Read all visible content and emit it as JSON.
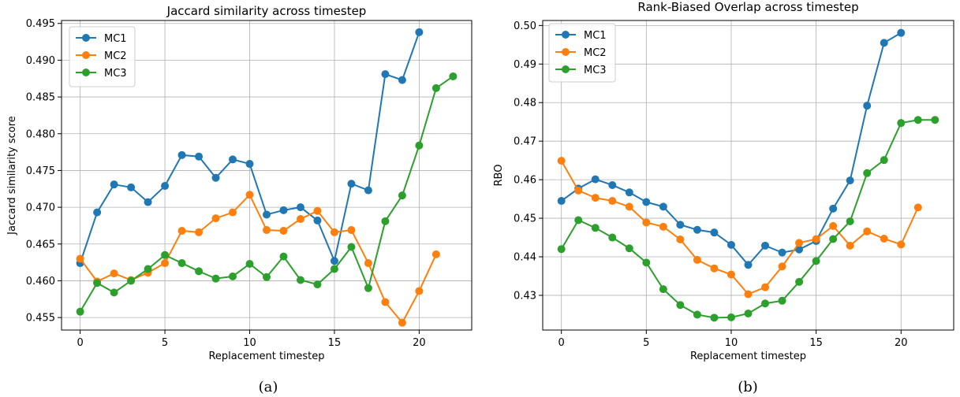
{
  "chart_data": [
    {
      "type": "line",
      "title": "Jaccard similarity across timestep",
      "xlabel": "Replacement timestep",
      "ylabel": "Jaccard similarity score",
      "caption": "(a)",
      "xlim": [
        -1.1,
        23.1
      ],
      "ylim": [
        0.4533,
        0.4954
      ],
      "xticks": [
        0,
        5,
        10,
        15,
        20
      ],
      "yticks": [
        0.455,
        0.46,
        0.465,
        0.47,
        0.475,
        0.48,
        0.485,
        0.49,
        0.495
      ],
      "ytick_labels": [
        "0.455",
        "0.460",
        "0.465",
        "0.470",
        "0.475",
        "0.480",
        "0.485",
        "0.490",
        "0.495"
      ],
      "grid": true,
      "legend": "upper-left",
      "series": [
        {
          "name": "MC1",
          "color": "#1f77b4",
          "x": [
            0,
            1,
            2,
            3,
            4,
            5,
            6,
            7,
            8,
            9,
            10,
            11,
            12,
            13,
            14,
            15,
            16,
            17,
            18,
            19,
            20
          ],
          "y": [
            0.4624,
            0.4693,
            0.4731,
            0.4727,
            0.4707,
            0.4729,
            0.4771,
            0.4769,
            0.474,
            0.4765,
            0.4759,
            0.469,
            0.4696,
            0.47,
            0.4682,
            0.4627,
            0.4732,
            0.4723,
            0.4881,
            0.4873,
            0.4938
          ]
        },
        {
          "name": "MC2",
          "color": "#ff7f0e",
          "x": [
            0,
            1,
            2,
            3,
            4,
            5,
            6,
            7,
            8,
            9,
            10,
            11,
            12,
            13,
            14,
            15,
            16,
            17,
            18,
            19,
            20,
            21
          ],
          "y": [
            0.463,
            0.4599,
            0.461,
            0.4601,
            0.4611,
            0.4624,
            0.4668,
            0.4666,
            0.4685,
            0.4693,
            0.4717,
            0.4669,
            0.4668,
            0.4684,
            0.4695,
            0.4666,
            0.4669,
            0.4624,
            0.4571,
            0.4543,
            0.4586,
            0.4636
          ]
        },
        {
          "name": "MC3",
          "color": "#2ca02c",
          "x": [
            0,
            1,
            2,
            3,
            4,
            5,
            6,
            7,
            8,
            9,
            10,
            11,
            12,
            13,
            14,
            15,
            16,
            17,
            18,
            19,
            20,
            21,
            22
          ],
          "y": [
            0.4558,
            0.4597,
            0.4584,
            0.46,
            0.4616,
            0.4635,
            0.4624,
            0.4613,
            0.4603,
            0.4606,
            0.4623,
            0.4605,
            0.4633,
            0.4601,
            0.4595,
            0.4616,
            0.4646,
            0.459,
            0.4681,
            0.4716,
            0.4784,
            0.4862,
            0.4878
          ]
        }
      ]
    },
    {
      "type": "line",
      "title": "Rank-Biased Overlap across timestep",
      "xlabel": "Replacement timestep",
      "ylabel": "RBO",
      "caption": "(b)",
      "xlim": [
        -1.1,
        23.1
      ],
      "ylim": [
        0.421,
        0.5013
      ],
      "xticks": [
        0,
        5,
        10,
        15,
        20
      ],
      "yticks": [
        0.43,
        0.44,
        0.45,
        0.46,
        0.47,
        0.48,
        0.49,
        0.5
      ],
      "ytick_labels": [
        "0.43",
        "0.44",
        "0.45",
        "0.46",
        "0.47",
        "0.48",
        "0.49",
        "0.50"
      ],
      "grid": true,
      "legend": "upper-left",
      "series": [
        {
          "name": "MC1",
          "color": "#1f77b4",
          "x": [
            0,
            1,
            2,
            3,
            4,
            5,
            6,
            7,
            8,
            9,
            10,
            11,
            12,
            13,
            14,
            15,
            16,
            17,
            18,
            19,
            20
          ],
          "y": [
            0.4545,
            0.4577,
            0.4601,
            0.4586,
            0.4567,
            0.4542,
            0.453,
            0.4483,
            0.447,
            0.4463,
            0.4431,
            0.4379,
            0.4429,
            0.4411,
            0.4419,
            0.4441,
            0.4525,
            0.4598,
            0.4792,
            0.4955,
            0.4981
          ]
        },
        {
          "name": "MC2",
          "color": "#ff7f0e",
          "x": [
            0,
            1,
            2,
            3,
            4,
            5,
            6,
            7,
            8,
            9,
            10,
            11,
            12,
            13,
            14,
            15,
            16,
            17,
            18,
            19,
            20,
            21
          ],
          "y": [
            0.4649,
            0.4572,
            0.4553,
            0.4545,
            0.453,
            0.4489,
            0.4478,
            0.4445,
            0.4392,
            0.437,
            0.4354,
            0.4303,
            0.4321,
            0.4375,
            0.4436,
            0.4446,
            0.448,
            0.4429,
            0.4466,
            0.4447,
            0.4432,
            0.4528
          ]
        },
        {
          "name": "MC3",
          "color": "#2ca02c",
          "x": [
            0,
            1,
            2,
            3,
            4,
            5,
            6,
            7,
            8,
            9,
            10,
            11,
            12,
            13,
            14,
            15,
            16,
            17,
            18,
            19,
            20,
            21,
            22
          ],
          "y": [
            0.442,
            0.4495,
            0.4475,
            0.445,
            0.4422,
            0.4385,
            0.4316,
            0.4275,
            0.425,
            0.4242,
            0.4243,
            0.4253,
            0.4279,
            0.4286,
            0.4335,
            0.4389,
            0.4446,
            0.4492,
            0.4617,
            0.4651,
            0.4747,
            0.4755,
            0.4755
          ]
        }
      ]
    }
  ]
}
